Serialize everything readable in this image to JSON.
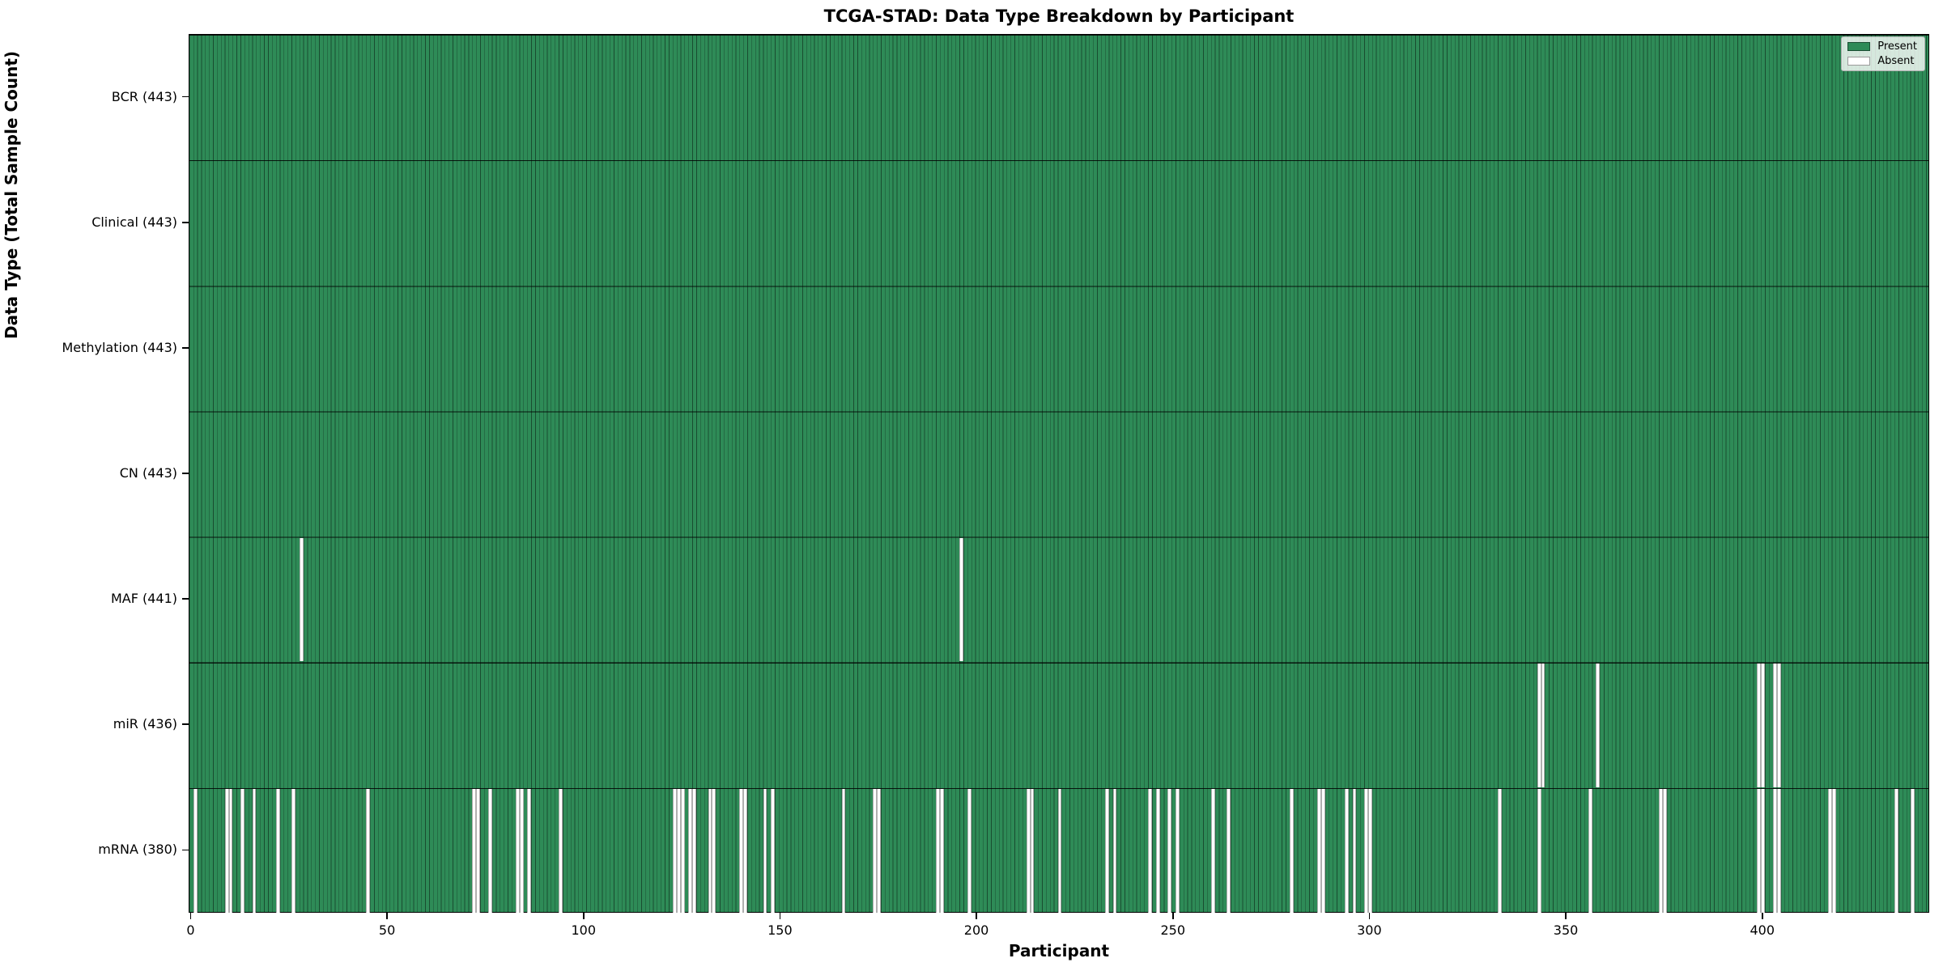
{
  "title": "TCGA-STAD: Data Type Breakdown by Participant",
  "xlabel": "Participant",
  "ylabel": "Data Type (Total Sample Count)",
  "legend": {
    "present_label": "Present",
    "absent_label": "Absent",
    "position": "upper right"
  },
  "colors": {
    "present": "#2e8b57",
    "absent": "#ffffff",
    "bar_edge": "#1a4d32",
    "row_divider": "#000000",
    "background": "#ffffff"
  },
  "chart_data": {
    "type": "heatmap",
    "title": "TCGA-STAD: Data Type Breakdown by Participant",
    "xlabel": "Participant",
    "ylabel": "Data Type (Total Sample Count)",
    "x_ticks": [
      0,
      50,
      100,
      150,
      200,
      250,
      300,
      350,
      400
    ],
    "n_participants": 443,
    "x_range": [
      -0.5,
      442.5
    ],
    "grid": false,
    "legend_entries": [
      "Present",
      "Absent"
    ],
    "rows": [
      {
        "label": "BCR (443)",
        "data_type": "BCR",
        "total": 443,
        "absent_participants": []
      },
      {
        "label": "Clinical (443)",
        "data_type": "Clinical",
        "total": 443,
        "absent_participants": []
      },
      {
        "label": "Methylation (443)",
        "data_type": "Methylation",
        "total": 443,
        "absent_participants": []
      },
      {
        "label": "CN (443)",
        "data_type": "CN",
        "total": 443,
        "absent_participants": []
      },
      {
        "label": "MAF (441)",
        "data_type": "MAF",
        "total": 441,
        "absent_participants": [
          28,
          196
        ]
      },
      {
        "label": "miR (436)",
        "data_type": "miR",
        "total": 436,
        "absent_participants": [
          343,
          344,
          358,
          399,
          400,
          403,
          404
        ]
      },
      {
        "label": "mRNA (380)",
        "data_type": "mRNA",
        "total": 380,
        "absent_participants": [
          1,
          9,
          10,
          13,
          16,
          22,
          26,
          45,
          72,
          73,
          76,
          83,
          84,
          86,
          94,
          123,
          124,
          125,
          127,
          128,
          132,
          133,
          140,
          141,
          146,
          148,
          166,
          174,
          175,
          190,
          191,
          198,
          213,
          214,
          221,
          233,
          235,
          244,
          246,
          249,
          251,
          260,
          264,
          280,
          287,
          288,
          294,
          296,
          299,
          300,
          333,
          343,
          356,
          374,
          375,
          399,
          400,
          403,
          404,
          417,
          418,
          434,
          438
        ]
      }
    ]
  }
}
